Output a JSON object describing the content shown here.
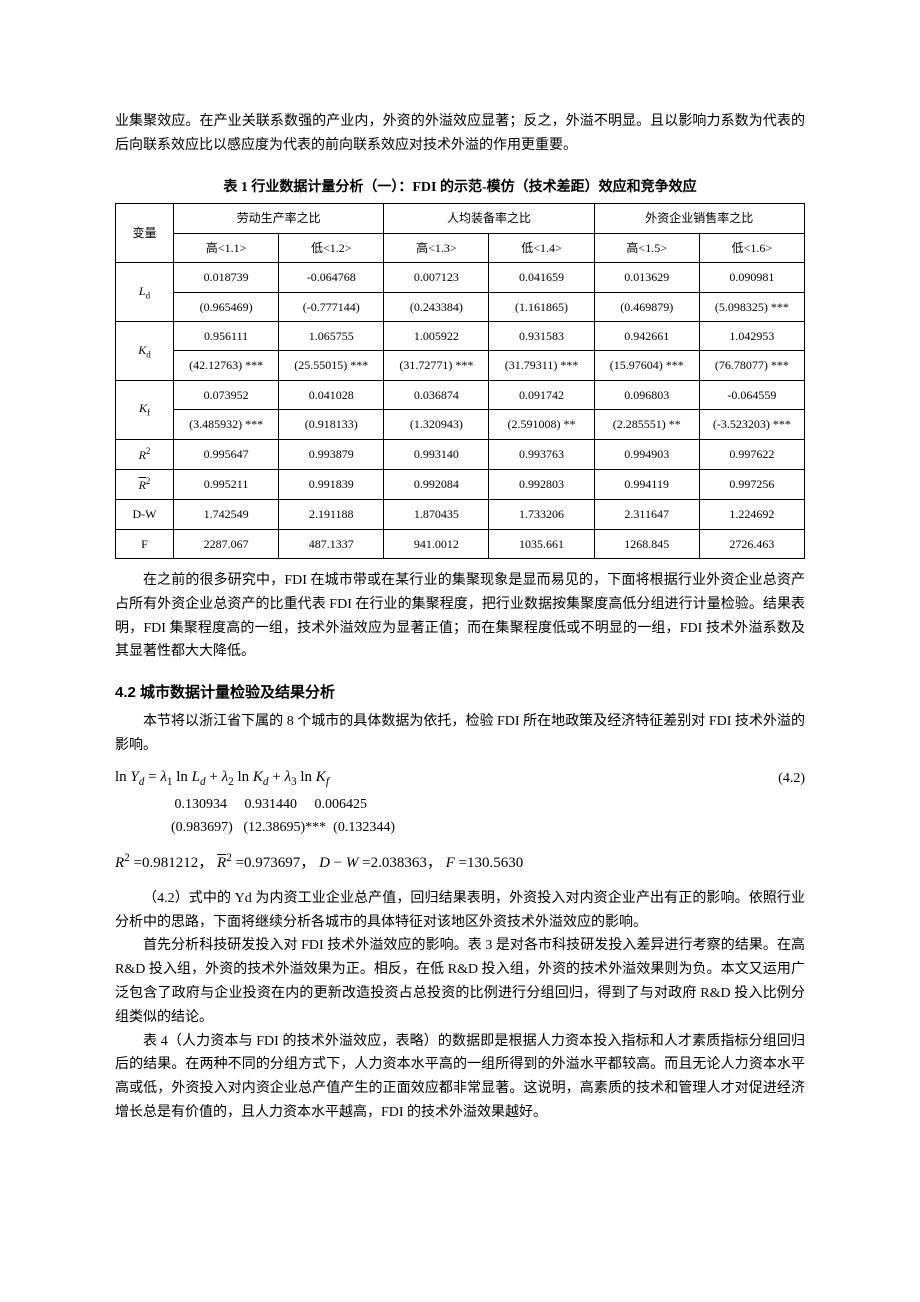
{
  "intro_paragraph": "业集聚效应。在产业关联系数强的产业内，外资的外溢效应显著；反之，外溢不明显。且以影响力系数为代表的后向联系效应比以感应度为代表的前向联系效应对技术外溢的作用更重要。",
  "table1": {
    "caption": "表 1 行业数据计量分析（一）：FDI 的示范-模仿（技术差距）效应和竞争效应",
    "var_header": "变量",
    "group_headers": [
      "劳动生产率之比",
      "人均装备率之比",
      "外资企业销售率之比"
    ],
    "sub_headers": [
      "高<1.1>",
      "低<1.2>",
      "高<1.3>",
      "低<1.4>",
      "高<1.5>",
      "低<1.6>"
    ],
    "rows": [
      {
        "var": "L",
        "sub": "d",
        "vals": [
          "0.018739",
          "-0.064768",
          "0.007123",
          "0.041659",
          "0.013629",
          "0.090981"
        ],
        "tstats": [
          "(0.965469)",
          "(-0.777144)",
          "(0.243384)",
          "(1.161865)",
          "(0.469879)",
          "(5.098325) ***"
        ]
      },
      {
        "var": "K",
        "sub": "d",
        "vals": [
          "0.956111",
          "1.065755",
          "1.005922",
          "0.931583",
          "0.942661",
          "1.042953"
        ],
        "tstats": [
          "(42.12763) ***",
          "(25.55015) ***",
          "(31.72771) ***",
          "(31.79311) ***",
          "(15.97604) ***",
          "(76.78077) ***"
        ]
      },
      {
        "var": "K",
        "sub": "f",
        "vals": [
          "0.073952",
          "0.041028",
          "0.036874",
          "0.091742",
          "0.096803",
          "-0.064559"
        ],
        "tstats": [
          "(3.485932) ***",
          "(0.918133)",
          "(1.320943)",
          "(2.591008) **",
          "(2.285551) **",
          "(-3.523203) ***"
        ]
      }
    ],
    "stat_rows": [
      {
        "label_html": "R2",
        "vals": [
          "0.995647",
          "0.993879",
          "0.993140",
          "0.993763",
          "0.994903",
          "0.997622"
        ]
      },
      {
        "label_html": "R2bar",
        "vals": [
          "0.995211",
          "0.991839",
          "0.992084",
          "0.992803",
          "0.994119",
          "0.997256"
        ]
      },
      {
        "label_html": "D-W",
        "vals": [
          "1.742549",
          "2.191188",
          "1.870435",
          "1.733206",
          "2.311647",
          "1.224692"
        ]
      },
      {
        "label_html": "F",
        "vals": [
          "2287.067",
          "487.1337",
          "941.0012",
          "1035.661",
          "1268.845",
          "2726.463"
        ]
      }
    ]
  },
  "after_table1": "在之前的很多研究中，FDI 在城市带或在某行业的集聚现象是显而易见的，下面将根据行业外资企业总资产占所有外资企业总资产的比重代表 FDI 在行业的集聚程度，把行业数据按集聚度高低分组进行计量检验。结果表明，FDI 集聚程度高的一组，技术外溢效应为显著正值；而在集聚程度低或不明显的一组，FDI 技术外溢系数及其显著性都大大降低。",
  "section42_title": "4.2 城市数据计量检验及结果分析",
  "section42_intro": "本节将以浙江省下属的 8 个城市的具体数据为依托，检验 FDI 所在地政策及经济特征差别对 FDI 技术外溢的影响。",
  "eq": {
    "text": "ln Yd = λ1 ln Ld + λ2 ln Kd + λ3 ln Kf",
    "num": "(4.2)",
    "coeffs": [
      "0.130934",
      "0.931440",
      "0.006425"
    ],
    "tstats": [
      "(0.983697)",
      "(12.38695)***",
      "(0.132344)"
    ],
    "stats": {
      "R2": "0.981212",
      "R2bar": "0.973697",
      "DW": "2.038363",
      "F": "130.5630"
    }
  },
  "p_after_eq_1": "（4.2）式中的 Yd 为内资工业企业总产值，回归结果表明，外资投入对内资企业产出有正的影响。依照行业分析中的思路，下面将继续分析各城市的具体特征对该地区外资技术外溢效应的影响。",
  "p_after_eq_2": "首先分析科技研发投入对 FDI 技术外溢效应的影响。表 3 是对各市科技研发投入差异进行考察的结果。在高 R&D 投入组，外资的技术外溢效果为正。相反，在低 R&D 投入组，外资的技术外溢效果则为负。本文又运用广泛包含了政府与企业投资在内的更新改造投资占总投资的比例进行分组回归，得到了与对政府 R&D 投入比例分组类似的结论。",
  "p_after_eq_3": "表 4（人力资本与 FDI 的技术外溢效应，表略）的数据即是根据人力资本投入指标和人才素质指标分组回归后的结果。在两种不同的分组方式下，人力资本水平高的一组所得到的外溢水平都较高。而且无论人力资本水平高或低，外资投入对内资企业总产值产生的正面效应都非常显著。这说明，高素质的技术和管理人才对促进经济增长总是有价值的，且人力资本水平越高，FDI 的技术外溢效果越好。"
}
